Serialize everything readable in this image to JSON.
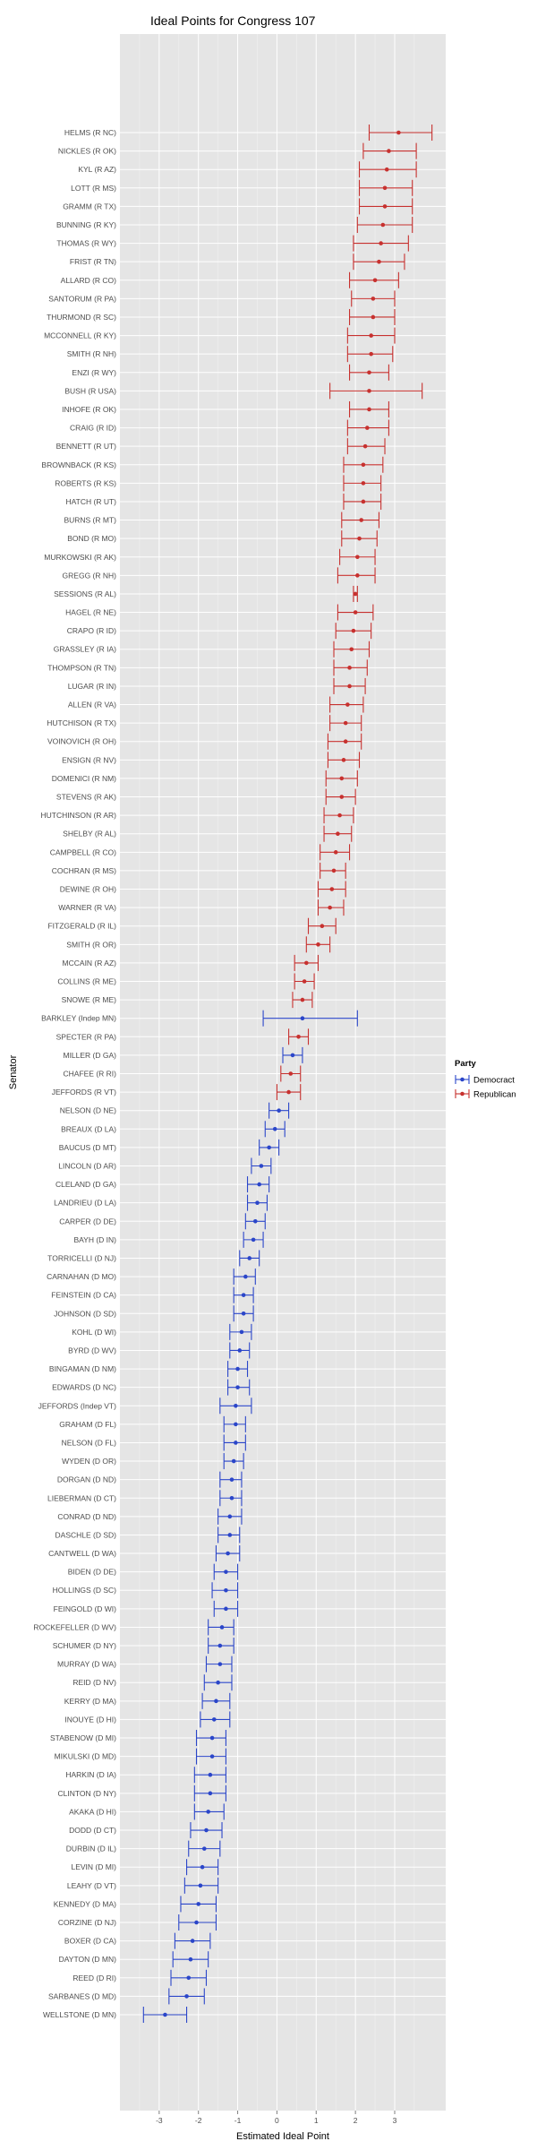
{
  "chart_data": {
    "type": "scatter",
    "title": "Ideal Points for Congress 107",
    "xlabel": "Estimated Ideal Point",
    "ylabel": "Senator",
    "xlim": [
      -4.0,
      4.3
    ],
    "x_ticks": [
      -3,
      -2,
      -1,
      0,
      1,
      2,
      3
    ],
    "grid": true,
    "legend": {
      "title": "Party",
      "position": "right",
      "entries": [
        {
          "label": "Democract",
          "color": "#2b46c9"
        },
        {
          "label": "Republican",
          "color": "#c7312f"
        }
      ]
    },
    "series": [
      {
        "name": "Democract",
        "color": "#2b46c9"
      },
      {
        "name": "Republican",
        "color": "#c7312f"
      }
    ],
    "points": [
      {
        "label": "HELMS (R NC)",
        "party": "Republican",
        "x": 3.1,
        "lo": 2.35,
        "hi": 3.95
      },
      {
        "label": "NICKLES (R OK)",
        "party": "Republican",
        "x": 2.85,
        "lo": 2.2,
        "hi": 3.55
      },
      {
        "label": "KYL (R AZ)",
        "party": "Republican",
        "x": 2.8,
        "lo": 2.1,
        "hi": 3.55
      },
      {
        "label": "LOTT (R MS)",
        "party": "Republican",
        "x": 2.75,
        "lo": 2.1,
        "hi": 3.45
      },
      {
        "label": "GRAMM (R TX)",
        "party": "Republican",
        "x": 2.75,
        "lo": 2.1,
        "hi": 3.45
      },
      {
        "label": "BUNNING (R KY)",
        "party": "Republican",
        "x": 2.7,
        "lo": 2.05,
        "hi": 3.45
      },
      {
        "label": "THOMAS (R WY)",
        "party": "Republican",
        "x": 2.65,
        "lo": 1.95,
        "hi": 3.35
      },
      {
        "label": "FRIST (R TN)",
        "party": "Republican",
        "x": 2.6,
        "lo": 1.95,
        "hi": 3.25
      },
      {
        "label": "ALLARD (R CO)",
        "party": "Republican",
        "x": 2.5,
        "lo": 1.85,
        "hi": 3.1
      },
      {
        "label": "SANTORUM (R PA)",
        "party": "Republican",
        "x": 2.45,
        "lo": 1.9,
        "hi": 3.0
      },
      {
        "label": "THURMOND (R SC)",
        "party": "Republican",
        "x": 2.45,
        "lo": 1.85,
        "hi": 3.0
      },
      {
        "label": "MCCONNELL (R KY)",
        "party": "Republican",
        "x": 2.4,
        "lo": 1.8,
        "hi": 3.0
      },
      {
        "label": "SMITH (R NH)",
        "party": "Republican",
        "x": 2.4,
        "lo": 1.8,
        "hi": 2.95
      },
      {
        "label": "ENZI (R WY)",
        "party": "Republican",
        "x": 2.35,
        "lo": 1.85,
        "hi": 2.85
      },
      {
        "label": "BUSH (R USA)",
        "party": "Republican",
        "x": 2.35,
        "lo": 1.35,
        "hi": 3.7
      },
      {
        "label": "INHOFE (R OK)",
        "party": "Republican",
        "x": 2.35,
        "lo": 1.85,
        "hi": 2.85
      },
      {
        "label": "CRAIG (R ID)",
        "party": "Republican",
        "x": 2.3,
        "lo": 1.8,
        "hi": 2.85
      },
      {
        "label": "BENNETT (R UT)",
        "party": "Republican",
        "x": 2.25,
        "lo": 1.8,
        "hi": 2.75
      },
      {
        "label": "BROWNBACK (R KS)",
        "party": "Republican",
        "x": 2.2,
        "lo": 1.7,
        "hi": 2.7
      },
      {
        "label": "ROBERTS (R KS)",
        "party": "Republican",
        "x": 2.2,
        "lo": 1.7,
        "hi": 2.65
      },
      {
        "label": "HATCH (R UT)",
        "party": "Republican",
        "x": 2.2,
        "lo": 1.7,
        "hi": 2.65
      },
      {
        "label": "BURNS (R MT)",
        "party": "Republican",
        "x": 2.15,
        "lo": 1.65,
        "hi": 2.6
      },
      {
        "label": "BOND (R MO)",
        "party": "Republican",
        "x": 2.1,
        "lo": 1.65,
        "hi": 2.55
      },
      {
        "label": "MURKOWSKI (R AK)",
        "party": "Republican",
        "x": 2.05,
        "lo": 1.6,
        "hi": 2.5
      },
      {
        "label": "GREGG (R NH)",
        "party": "Republican",
        "x": 2.05,
        "lo": 1.55,
        "hi": 2.5
      },
      {
        "label": "SESSIONS (R AL)",
        "party": "Republican",
        "x": 2.0,
        "lo": 1.95,
        "hi": 2.05
      },
      {
        "label": "HAGEL (R NE)",
        "party": "Republican",
        "x": 2.0,
        "lo": 1.55,
        "hi": 2.45
      },
      {
        "label": "CRAPO (R ID)",
        "party": "Republican",
        "x": 1.95,
        "lo": 1.5,
        "hi": 2.4
      },
      {
        "label": "GRASSLEY (R IA)",
        "party": "Republican",
        "x": 1.9,
        "lo": 1.45,
        "hi": 2.35
      },
      {
        "label": "THOMPSON (R TN)",
        "party": "Republican",
        "x": 1.85,
        "lo": 1.45,
        "hi": 2.3
      },
      {
        "label": "LUGAR (R IN)",
        "party": "Republican",
        "x": 1.85,
        "lo": 1.45,
        "hi": 2.25
      },
      {
        "label": "ALLEN (R VA)",
        "party": "Republican",
        "x": 1.8,
        "lo": 1.35,
        "hi": 2.2
      },
      {
        "label": "HUTCHISON (R TX)",
        "party": "Republican",
        "x": 1.75,
        "lo": 1.35,
        "hi": 2.15
      },
      {
        "label": "VOINOVICH (R OH)",
        "party": "Republican",
        "x": 1.75,
        "lo": 1.3,
        "hi": 2.15
      },
      {
        "label": "ENSIGN (R NV)",
        "party": "Republican",
        "x": 1.7,
        "lo": 1.3,
        "hi": 2.1
      },
      {
        "label": "DOMENICI (R NM)",
        "party": "Republican",
        "x": 1.65,
        "lo": 1.25,
        "hi": 2.05
      },
      {
        "label": "STEVENS (R AK)",
        "party": "Republican",
        "x": 1.65,
        "lo": 1.25,
        "hi": 2.0
      },
      {
        "label": "HUTCHINSON (R AR)",
        "party": "Republican",
        "x": 1.6,
        "lo": 1.2,
        "hi": 1.95
      },
      {
        "label": "SHELBY (R AL)",
        "party": "Republican",
        "x": 1.55,
        "lo": 1.2,
        "hi": 1.9
      },
      {
        "label": "CAMPBELL (R CO)",
        "party": "Republican",
        "x": 1.5,
        "lo": 1.1,
        "hi": 1.85
      },
      {
        "label": "COCHRAN (R MS)",
        "party": "Republican",
        "x": 1.45,
        "lo": 1.1,
        "hi": 1.75
      },
      {
        "label": "DEWINE (R OH)",
        "party": "Republican",
        "x": 1.4,
        "lo": 1.05,
        "hi": 1.75
      },
      {
        "label": "WARNER (R VA)",
        "party": "Republican",
        "x": 1.35,
        "lo": 1.05,
        "hi": 1.7
      },
      {
        "label": "FITZGERALD (R IL)",
        "party": "Republican",
        "x": 1.15,
        "lo": 0.8,
        "hi": 1.5
      },
      {
        "label": "SMITH (R OR)",
        "party": "Republican",
        "x": 1.05,
        "lo": 0.75,
        "hi": 1.35
      },
      {
        "label": "MCCAIN (R AZ)",
        "party": "Republican",
        "x": 0.75,
        "lo": 0.45,
        "hi": 1.05
      },
      {
        "label": "COLLINS (R ME)",
        "party": "Republican",
        "x": 0.7,
        "lo": 0.45,
        "hi": 0.95
      },
      {
        "label": "SNOWE (R ME)",
        "party": "Republican",
        "x": 0.65,
        "lo": 0.4,
        "hi": 0.9
      },
      {
        "label": "BARKLEY (Indep MN)",
        "party": "Democract",
        "x": 0.65,
        "lo": -0.35,
        "hi": 2.05
      },
      {
        "label": "SPECTER (R PA)",
        "party": "Republican",
        "x": 0.55,
        "lo": 0.3,
        "hi": 0.8
      },
      {
        "label": "MILLER (D GA)",
        "party": "Democract",
        "x": 0.4,
        "lo": 0.15,
        "hi": 0.65
      },
      {
        "label": "CHAFEE (R RI)",
        "party": "Republican",
        "x": 0.35,
        "lo": 0.1,
        "hi": 0.6
      },
      {
        "label": "JEFFORDS (R VT)",
        "party": "Republican",
        "x": 0.3,
        "lo": 0.0,
        "hi": 0.6
      },
      {
        "label": "NELSON (D NE)",
        "party": "Democract",
        "x": 0.05,
        "lo": -0.2,
        "hi": 0.3
      },
      {
        "label": "BREAUX (D LA)",
        "party": "Democract",
        "x": -0.05,
        "lo": -0.3,
        "hi": 0.2
      },
      {
        "label": "BAUCUS (D MT)",
        "party": "Democract",
        "x": -0.2,
        "lo": -0.45,
        "hi": 0.05
      },
      {
        "label": "LINCOLN (D AR)",
        "party": "Democract",
        "x": -0.4,
        "lo": -0.65,
        "hi": -0.15
      },
      {
        "label": "CLELAND (D GA)",
        "party": "Democract",
        "x": -0.45,
        "lo": -0.75,
        "hi": -0.2
      },
      {
        "label": "LANDRIEU (D LA)",
        "party": "Democract",
        "x": -0.5,
        "lo": -0.75,
        "hi": -0.25
      },
      {
        "label": "CARPER (D DE)",
        "party": "Democract",
        "x": -0.55,
        "lo": -0.8,
        "hi": -0.3
      },
      {
        "label": "BAYH (D IN)",
        "party": "Democract",
        "x": -0.6,
        "lo": -0.85,
        "hi": -0.35
      },
      {
        "label": "TORRICELLI (D NJ)",
        "party": "Democract",
        "x": -0.7,
        "lo": -0.95,
        "hi": -0.45
      },
      {
        "label": "CARNAHAN (D MO)",
        "party": "Democract",
        "x": -0.8,
        "lo": -1.1,
        "hi": -0.55
      },
      {
        "label": "FEINSTEIN (D CA)",
        "party": "Democract",
        "x": -0.85,
        "lo": -1.1,
        "hi": -0.6
      },
      {
        "label": "JOHNSON (D SD)",
        "party": "Democract",
        "x": -0.85,
        "lo": -1.1,
        "hi": -0.6
      },
      {
        "label": "KOHL (D WI)",
        "party": "Democract",
        "x": -0.9,
        "lo": -1.2,
        "hi": -0.65
      },
      {
        "label": "BYRD (D WV)",
        "party": "Democract",
        "x": -0.95,
        "lo": -1.2,
        "hi": -0.7
      },
      {
        "label": "BINGAMAN (D NM)",
        "party": "Democract",
        "x": -1.0,
        "lo": -1.25,
        "hi": -0.75
      },
      {
        "label": "EDWARDS (D NC)",
        "party": "Democract",
        "x": -1.0,
        "lo": -1.25,
        "hi": -0.7
      },
      {
        "label": "JEFFORDS (Indep VT)",
        "party": "Democract",
        "x": -1.05,
        "lo": -1.45,
        "hi": -0.65
      },
      {
        "label": "GRAHAM (D FL)",
        "party": "Democract",
        "x": -1.05,
        "lo": -1.35,
        "hi": -0.8
      },
      {
        "label": "NELSON (D FL)",
        "party": "Democract",
        "x": -1.05,
        "lo": -1.35,
        "hi": -0.8
      },
      {
        "label": "WYDEN (D OR)",
        "party": "Democract",
        "x": -1.1,
        "lo": -1.35,
        "hi": -0.85
      },
      {
        "label": "DORGAN (D ND)",
        "party": "Democract",
        "x": -1.15,
        "lo": -1.45,
        "hi": -0.9
      },
      {
        "label": "LIEBERMAN (D CT)",
        "party": "Democract",
        "x": -1.15,
        "lo": -1.45,
        "hi": -0.9
      },
      {
        "label": "CONRAD (D ND)",
        "party": "Democract",
        "x": -1.2,
        "lo": -1.5,
        "hi": -0.9
      },
      {
        "label": "DASCHLE (D SD)",
        "party": "Democract",
        "x": -1.2,
        "lo": -1.5,
        "hi": -0.95
      },
      {
        "label": "CANTWELL (D WA)",
        "party": "Democract",
        "x": -1.25,
        "lo": -1.55,
        "hi": -0.95
      },
      {
        "label": "BIDEN (D DE)",
        "party": "Democract",
        "x": -1.3,
        "lo": -1.6,
        "hi": -1.0
      },
      {
        "label": "HOLLINGS (D SC)",
        "party": "Democract",
        "x": -1.3,
        "lo": -1.65,
        "hi": -1.0
      },
      {
        "label": "FEINGOLD (D WI)",
        "party": "Democract",
        "x": -1.3,
        "lo": -1.6,
        "hi": -1.0
      },
      {
        "label": "ROCKEFELLER (D WV)",
        "party": "Democract",
        "x": -1.4,
        "lo": -1.75,
        "hi": -1.1
      },
      {
        "label": "SCHUMER (D NY)",
        "party": "Democract",
        "x": -1.45,
        "lo": -1.75,
        "hi": -1.1
      },
      {
        "label": "MURRAY (D WA)",
        "party": "Democract",
        "x": -1.45,
        "lo": -1.8,
        "hi": -1.15
      },
      {
        "label": "REID (D NV)",
        "party": "Democract",
        "x": -1.5,
        "lo": -1.85,
        "hi": -1.15
      },
      {
        "label": "KERRY (D MA)",
        "party": "Democract",
        "x": -1.55,
        "lo": -1.9,
        "hi": -1.2
      },
      {
        "label": "INOUYE (D HI)",
        "party": "Democract",
        "x": -1.6,
        "lo": -1.95,
        "hi": -1.2
      },
      {
        "label": "STABENOW (D MI)",
        "party": "Democract",
        "x": -1.65,
        "lo": -2.05,
        "hi": -1.3
      },
      {
        "label": "MIKULSKI (D MD)",
        "party": "Democract",
        "x": -1.65,
        "lo": -2.05,
        "hi": -1.3
      },
      {
        "label": "HARKIN (D IA)",
        "party": "Democract",
        "x": -1.7,
        "lo": -2.1,
        "hi": -1.3
      },
      {
        "label": "CLINTON (D NY)",
        "party": "Democract",
        "x": -1.7,
        "lo": -2.1,
        "hi": -1.3
      },
      {
        "label": "AKAKA (D HI)",
        "party": "Democract",
        "x": -1.75,
        "lo": -2.1,
        "hi": -1.35
      },
      {
        "label": "DODD (D CT)",
        "party": "Democract",
        "x": -1.8,
        "lo": -2.2,
        "hi": -1.4
      },
      {
        "label": "DURBIN (D IL)",
        "party": "Democract",
        "x": -1.85,
        "lo": -2.25,
        "hi": -1.45
      },
      {
        "label": "LEVIN (D MI)",
        "party": "Democract",
        "x": -1.9,
        "lo": -2.3,
        "hi": -1.5
      },
      {
        "label": "LEAHY (D VT)",
        "party": "Democract",
        "x": -1.95,
        "lo": -2.35,
        "hi": -1.5
      },
      {
        "label": "KENNEDY (D MA)",
        "party": "Democract",
        "x": -2.0,
        "lo": -2.45,
        "hi": -1.55
      },
      {
        "label": "CORZINE (D NJ)",
        "party": "Democract",
        "x": -2.05,
        "lo": -2.5,
        "hi": -1.55
      },
      {
        "label": "BOXER (D CA)",
        "party": "Democract",
        "x": -2.15,
        "lo": -2.6,
        "hi": -1.7
      },
      {
        "label": "DAYTON (D MN)",
        "party": "Democract",
        "x": -2.2,
        "lo": -2.65,
        "hi": -1.75
      },
      {
        "label": "REED (D RI)",
        "party": "Democract",
        "x": -2.25,
        "lo": -2.7,
        "hi": -1.8
      },
      {
        "label": "SARBANES (D MD)",
        "party": "Democract",
        "x": -2.3,
        "lo": -2.75,
        "hi": -1.85
      },
      {
        "label": "WELLSTONE (D MN)",
        "party": "Democract",
        "x": -2.85,
        "lo": -3.4,
        "hi": -2.3
      }
    ]
  }
}
